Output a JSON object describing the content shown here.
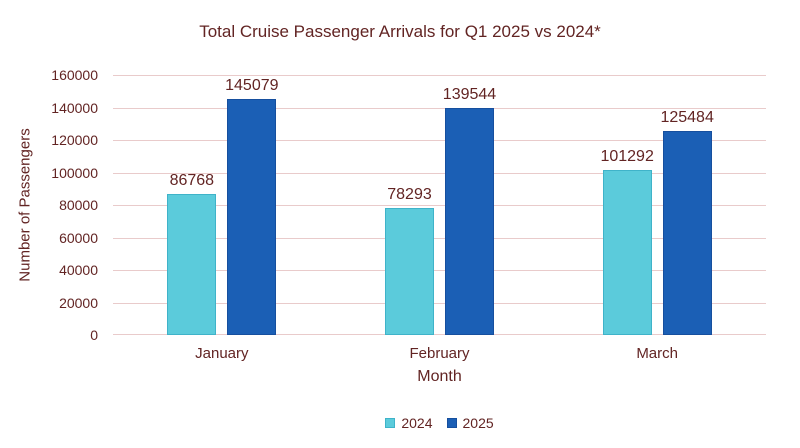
{
  "chart_data": {
    "type": "bar",
    "title": "Total Cruise Passenger Arrivals for Q1 2025 vs 2024*",
    "xlabel": "Month",
    "ylabel": "Number of Passengers",
    "categories": [
      "January",
      "February",
      "March"
    ],
    "series": [
      {
        "name": "2024",
        "values": [
          86768,
          78293,
          101292
        ],
        "color": "#5BCBDB",
        "border_color": "#3FB3C9"
      },
      {
        "name": "2025",
        "values": [
          145079,
          139544,
          125484
        ],
        "color": "#1B5FB5",
        "border_color": "#164F9E"
      }
    ],
    "ylim": [
      0,
      160000
    ],
    "ytick_step": 20000,
    "ytick_labels": [
      "0",
      "20000",
      "40000",
      "60000",
      "80000",
      "100000",
      "120000",
      "140000",
      "160000"
    ],
    "grid": true,
    "data_labels": true,
    "legend_position": "bottom"
  },
  "style": {
    "background": "#FFFFFF",
    "text_color": "#622423",
    "gridline_color": "#E9CBCB"
  }
}
